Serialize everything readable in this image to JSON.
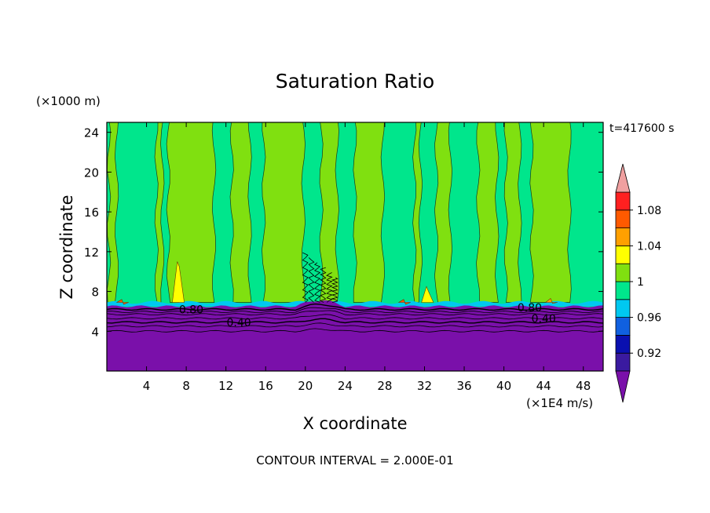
{
  "chart_data": {
    "type": "heatmap",
    "title": "Saturation Ratio",
    "xlabel": "X coordinate",
    "ylabel": "Z coordinate",
    "x_unit_label": "(×1E4 m/s)",
    "y_unit_label": "(×1000 m)",
    "time_label": "t=417600 s",
    "footer": "CONTOUR INTERVAL = 2.000E-01",
    "xlim": [
      0,
      50
    ],
    "ylim": [
      0,
      25
    ],
    "x_ticks": [
      4,
      8,
      12,
      16,
      20,
      24,
      28,
      32,
      36,
      40,
      44,
      48
    ],
    "y_ticks": [
      4,
      8,
      12,
      16,
      20,
      24
    ],
    "colorbar": {
      "levels": [
        0.9,
        0.92,
        0.94,
        0.96,
        0.98,
        1.0,
        1.02,
        1.04,
        1.06,
        1.08,
        1.1
      ],
      "tick_labels": [
        "0.92",
        "0.96",
        "1",
        "1.04",
        "1.08"
      ],
      "tick_values": [
        0.92,
        0.96,
        1.0,
        1.04,
        1.08
      ],
      "colors": [
        "#3a1aa0",
        "#0a10b0",
        "#1060e0",
        "#00c8f0",
        "#00e68c",
        "#80e010",
        "#ffff00",
        "#ffa000",
        "#ff5a00",
        "#ff2020"
      ],
      "under_color": "#7a10aa",
      "over_color": "#f0a0a0"
    },
    "contour_labels": [
      {
        "text": "0.80",
        "x": 8.5,
        "z": 6.2
      },
      {
        "text": "0.40",
        "x": 13.3,
        "z": 4.9
      },
      {
        "text": "0.80",
        "x": 42.6,
        "z": 6.4
      },
      {
        "text": "0.40",
        "x": 44.0,
        "z": 5.3
      }
    ],
    "regions": {
      "dry_layer_top_z": 6.5,
      "cloud_base_z": 6.9,
      "saturated_columns_x": [
        [
          0.2,
          1.0
        ],
        [
          5.0,
          5.6
        ],
        [
          6.2,
          10.8
        ],
        [
          12.6,
          14.4
        ],
        [
          15.8,
          19.8
        ],
        [
          21.6,
          23.2
        ],
        [
          25.0,
          27.8
        ],
        [
          31.0,
          31.6
        ],
        [
          33.2,
          34.6
        ],
        [
          37.4,
          39.3
        ],
        [
          40.2,
          41.6
        ],
        [
          42.8,
          46.6
        ]
      ],
      "supersaturated_spots": [
        {
          "x": 7.2,
          "z_top": 11.0,
          "color": "#ffff00"
        },
        {
          "x": 32.3,
          "z_top": 8.5,
          "color": "#ffff00"
        },
        {
          "x": 44.8,
          "z_top": 7.3,
          "color": "#ffa000"
        },
        {
          "x": 30.0,
          "z_top": 7.2,
          "color": "#ff5a00"
        },
        {
          "x": 1.6,
          "z_top": 7.2,
          "color": "#ff5a00"
        }
      ]
    }
  }
}
